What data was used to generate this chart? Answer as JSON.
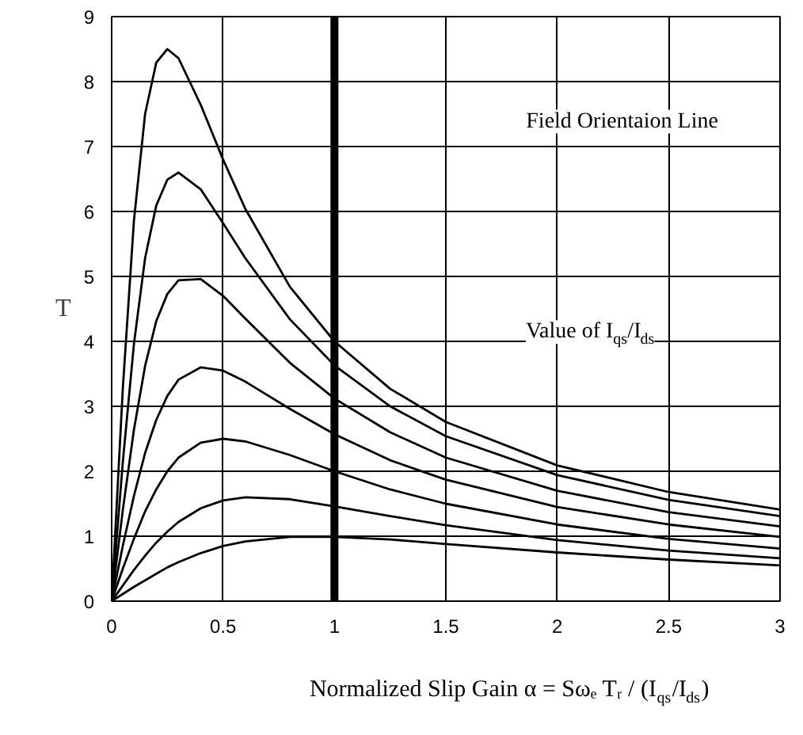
{
  "chart_data": {
    "type": "line",
    "xlabel": "Normalized Slip Gain α = Sωₑ Tᵣ / (I$_{qs}$/I$_{ds}$)",
    "ylabel": "T",
    "annotations": [
      "Value of I$_{qs}$/I$_{ds}$"
    ],
    "ref_lines": [
      {
        "axis": "x",
        "value": 1,
        "label": "Field Orientaion Line",
        "color": "#000000"
      }
    ],
    "x": [
      0,
      0.05,
      0.1,
      0.15,
      0.2,
      0.25,
      0.3,
      0.4,
      0.5,
      0.6,
      0.8,
      1,
      1.25,
      1.5,
      2,
      2.5,
      3
    ],
    "series": [
      {
        "color": "#000000",
        "values": [
          0,
          3.27,
          5.86,
          7.5,
          8.29,
          8.5,
          8.36,
          7.64,
          6.8,
          6.04,
          4.84,
          4.0,
          3.27,
          2.76,
          2.09,
          1.68,
          1.41
        ]
      },
      {
        "color": "#000000",
        "values": [
          0,
          2.14,
          3.96,
          5.28,
          6.09,
          6.49,
          6.6,
          6.34,
          5.82,
          5.28,
          4.34,
          3.63,
          3.0,
          2.54,
          1.94,
          1.56,
          1.31
        ]
      },
      {
        "color": "#000000",
        "values": [
          0,
          1.4,
          2.64,
          3.62,
          4.31,
          4.73,
          4.94,
          4.96,
          4.7,
          4.35,
          3.67,
          3.12,
          2.6,
          2.21,
          1.7,
          1.37,
          1.15
        ]
      },
      {
        "color": "#000000",
        "values": [
          0,
          0.85,
          1.62,
          2.28,
          2.79,
          3.16,
          3.41,
          3.6,
          3.55,
          3.38,
          2.96,
          2.57,
          2.17,
          1.87,
          1.45,
          1.18,
          0.99
        ]
      },
      {
        "color": "#000000",
        "values": [
          0,
          0.5,
          0.96,
          1.38,
          1.72,
          2.0,
          2.21,
          2.44,
          2.5,
          2.46,
          2.25,
          2.0,
          1.72,
          1.5,
          1.18,
          0.96,
          0.81
        ]
      },
      {
        "color": "#000000",
        "values": [
          0,
          0.24,
          0.48,
          0.7,
          0.9,
          1.07,
          1.22,
          1.43,
          1.55,
          1.6,
          1.57,
          1.46,
          1.31,
          1.17,
          0.94,
          0.78,
          0.66
        ]
      },
      {
        "color": "#000000",
        "values": [
          0,
          0.11,
          0.22,
          0.32,
          0.42,
          0.52,
          0.6,
          0.74,
          0.85,
          0.92,
          0.99,
          0.99,
          0.95,
          0.88,
          0.75,
          0.64,
          0.55
        ]
      }
    ],
    "xlim": [
      0,
      3
    ],
    "ylim": [
      0,
      9
    ],
    "xticks": [
      0,
      {
        "value": 0.5,
        "label": "0.5"
      },
      1,
      {
        "value": 1.5,
        "label": "1.5"
      },
      2,
      {
        "value": 2.5,
        "label": "2.5"
      },
      3
    ],
    "yticks": [
      0,
      1,
      2,
      3,
      4,
      5,
      6,
      7,
      8,
      9
    ],
    "grid": true,
    "legend": false,
    "marker": "none",
    "line_style": "solid"
  }
}
